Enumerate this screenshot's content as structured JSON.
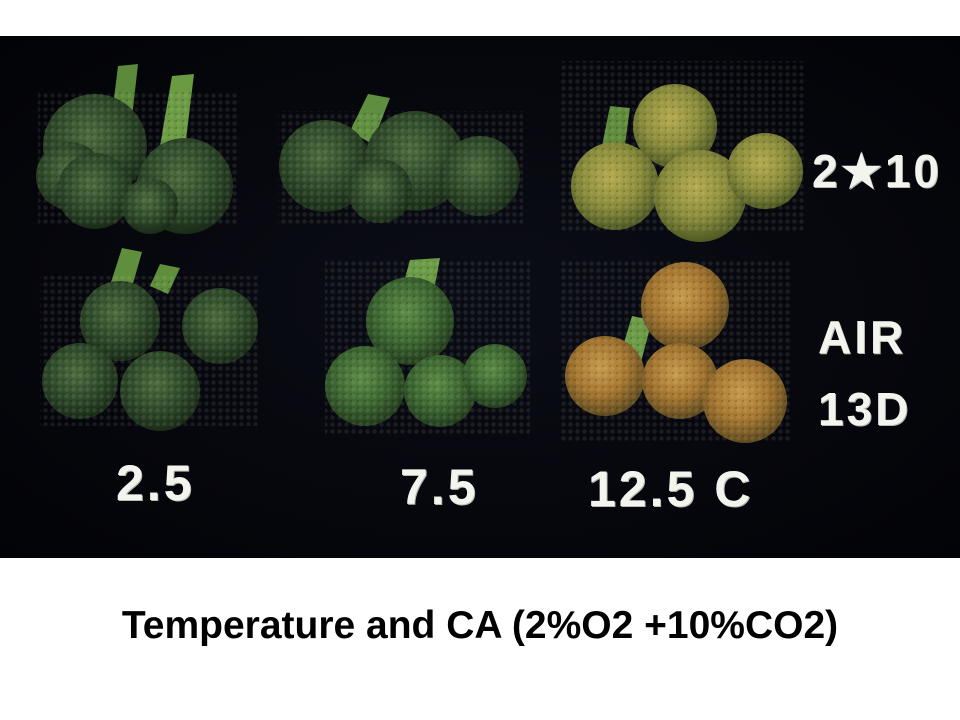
{
  "photo": {
    "labels": {
      "col_1": "2.5",
      "col_2": "7.5",
      "col_3": "12.5 C",
      "row_top": "2★10",
      "row_bottom_line1": "AIR",
      "row_bottom_line2": "13D"
    },
    "samples": [
      {
        "row": "2★10",
        "column": "2.5",
        "appearance": "dark-green"
      },
      {
        "row": "2★10",
        "column": "7.5",
        "appearance": "dark-green"
      },
      {
        "row": "2★10",
        "column": "12.5 C",
        "appearance": "yellow-green"
      },
      {
        "row": "AIR 13D",
        "column": "2.5",
        "appearance": "dark-green"
      },
      {
        "row": "AIR 13D",
        "column": "7.5",
        "appearance": "green"
      },
      {
        "row": "AIR 13D",
        "column": "12.5 C",
        "appearance": "yellow-orange"
      }
    ]
  },
  "caption": "Temperature and CA (2%O2 +10%CO2)",
  "colors": {
    "background_photo": "#05060b",
    "label_text": "#f4f4ef",
    "caption_text": "#000000",
    "dark_green": "#2d4a27",
    "green": "#3f6a2f",
    "yellow_green": "#8a8f3a",
    "yellow_orange": "#a8782e"
  }
}
